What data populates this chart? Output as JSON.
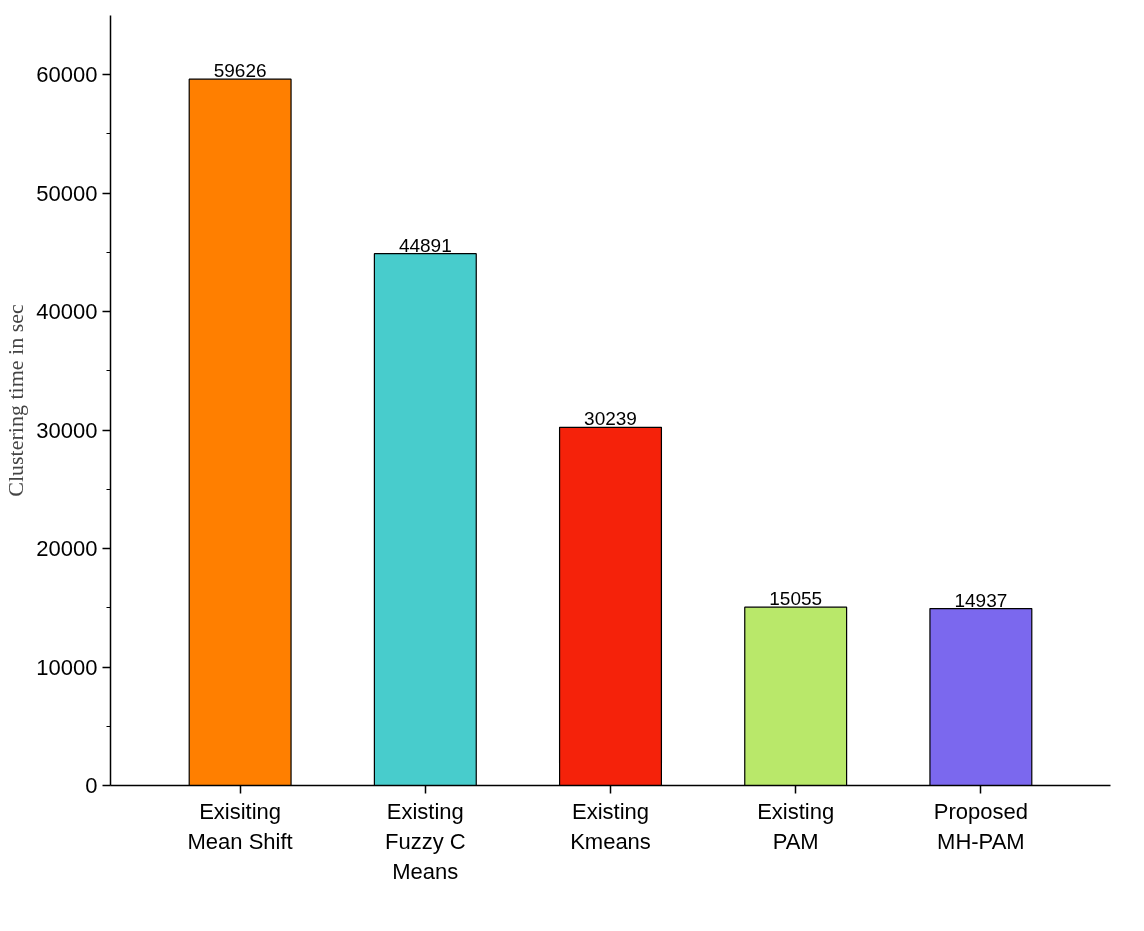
{
  "chart_data": {
    "type": "bar",
    "ylabel": "Clustering time in sec",
    "categories": [
      "Exisiting Mean Shift",
      "Existing Fuzzy C Means",
      "Existing Kmeans",
      "Existing PAM",
      "Proposed MH-PAM"
    ],
    "values": [
      59626,
      44891,
      30239,
      15055,
      14937
    ],
    "colors": [
      "#ff7f00",
      "#48cccc",
      "#f5220a",
      "#b9e86a",
      "#7b68ee"
    ],
    "ylim": [
      0,
      65000
    ],
    "yticks": [
      0,
      10000,
      20000,
      30000,
      40000,
      50000,
      60000
    ],
    "data_labels": true,
    "grid": false
  }
}
